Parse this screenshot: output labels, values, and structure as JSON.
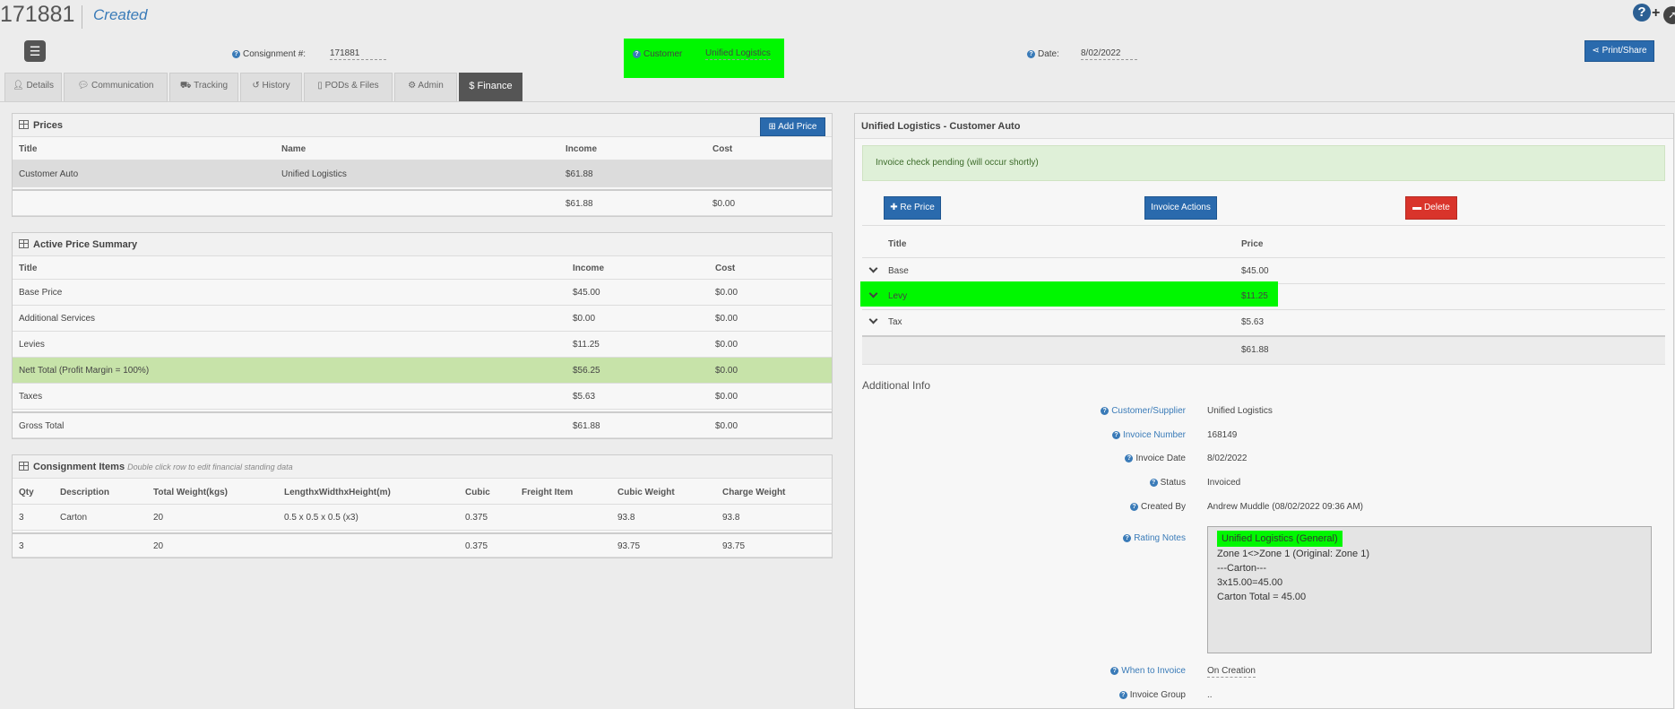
{
  "header": {
    "id": "171881",
    "status": "Created",
    "help_glyph": "?",
    "plus_glyph": "+",
    "consignment_label": "Consignment #:",
    "consignment_value": "171881",
    "customer_label": "Customer",
    "customer_value": "Unified Logistics",
    "date_label": "Date:",
    "date_value": "8/02/2022",
    "print_label": "Print/Share",
    "menu_glyph": "☰"
  },
  "tabs": [
    {
      "label": "Details",
      "icon": "user-icon"
    },
    {
      "label": "Communication",
      "icon": "comment-icon"
    },
    {
      "label": "Tracking",
      "icon": "truck-icon"
    },
    {
      "label": "History",
      "icon": "history-icon"
    },
    {
      "label": "PODs & Files",
      "icon": "file-icon"
    },
    {
      "label": "Admin",
      "icon": "gear-icon"
    },
    {
      "label": "Finance",
      "icon": "dollar-icon",
      "active": true
    }
  ],
  "prices": {
    "title": "Prices",
    "add_label": "Add Price",
    "columns": [
      "Title",
      "Name",
      "Income",
      "Cost"
    ],
    "rows": [
      {
        "title": "Customer Auto",
        "name": "Unified Logistics",
        "income": "$61.88",
        "cost": ""
      }
    ],
    "total": {
      "income": "$61.88",
      "cost": "$0.00"
    }
  },
  "summary": {
    "title": "Active Price Summary",
    "columns": [
      "Title",
      "Income",
      "Cost"
    ],
    "rows": [
      {
        "title": "Base Price",
        "income": "$45.00",
        "cost": "$0.00"
      },
      {
        "title": "Additional Services",
        "income": "$0.00",
        "cost": "$0.00"
      },
      {
        "title": "Levies",
        "income": "$11.25",
        "cost": "$0.00"
      },
      {
        "title": "Nett Total (Profit Margin = 100%)",
        "income": "$56.25",
        "cost": "$0.00"
      },
      {
        "title": "Taxes",
        "income": "$5.63",
        "cost": "$0.00"
      },
      {
        "title": "Gross Total",
        "income": "$61.88",
        "cost": "$0.00"
      }
    ]
  },
  "items": {
    "title": "Consignment Items",
    "note": "Double click row to edit financial standing data",
    "columns": [
      "Qty",
      "Description",
      "Total Weight(kgs)",
      "LengthxWidthxHeight(m)",
      "Cubic",
      "Freight Item",
      "Cubic Weight",
      "Charge Weight"
    ],
    "rows": [
      {
        "qty": "3",
        "desc": "Carton",
        "weight": "20",
        "dims": "0.5 x 0.5 x 0.5 (x3)",
        "cubic": "0.375",
        "freight": "",
        "cubic_weight": "93.8",
        "charge_weight": "93.8"
      }
    ],
    "total": {
      "qty": "3",
      "weight": "20",
      "cubic": "0.375",
      "cubic_weight": "93.75",
      "charge_weight": "93.75"
    }
  },
  "invoice": {
    "title": "Unified Logistics - Customer Auto",
    "notice": "Invoice check pending (will occur shortly)",
    "reprice_label": "Re Price",
    "actions_label": "Invoice Actions",
    "delete_label": "Delete",
    "columns": [
      "Title",
      "Price"
    ],
    "lines": [
      {
        "title": "Base",
        "price": "$45.00"
      },
      {
        "title": "Levy",
        "price": "$11.25"
      },
      {
        "title": "Tax",
        "price": "$5.63"
      }
    ],
    "total": "$61.88"
  },
  "additional": {
    "title": "Additional Info",
    "fields": [
      {
        "label": "Customer/Supplier",
        "value": "Unified Logistics"
      },
      {
        "label": "Invoice Number",
        "value": "168149"
      },
      {
        "label": "Invoice Date",
        "value": "8/02/2022"
      },
      {
        "label": "Status",
        "value": "Invoiced"
      },
      {
        "label": "Created By",
        "value": "Andrew Muddle (08/02/2022 09:36 AM)"
      },
      {
        "label": "Rating Notes",
        "value": ""
      },
      {
        "label": "When to Invoice",
        "value": "On Creation"
      },
      {
        "label": "Invoice Group",
        "value": ".."
      }
    ],
    "rating_notes": [
      "Unified Logistics (General)",
      "Zone 1<>Zone 1 (Original: Zone 1)",
      "---Carton---",
      "3x15.00=45.00",
      "Carton Total = 45.00"
    ]
  },
  "colors": {
    "highlight": "#00f700",
    "primary": "#2a6aad",
    "danger": "#d9342b",
    "nett_row": "#c7e3a9"
  }
}
